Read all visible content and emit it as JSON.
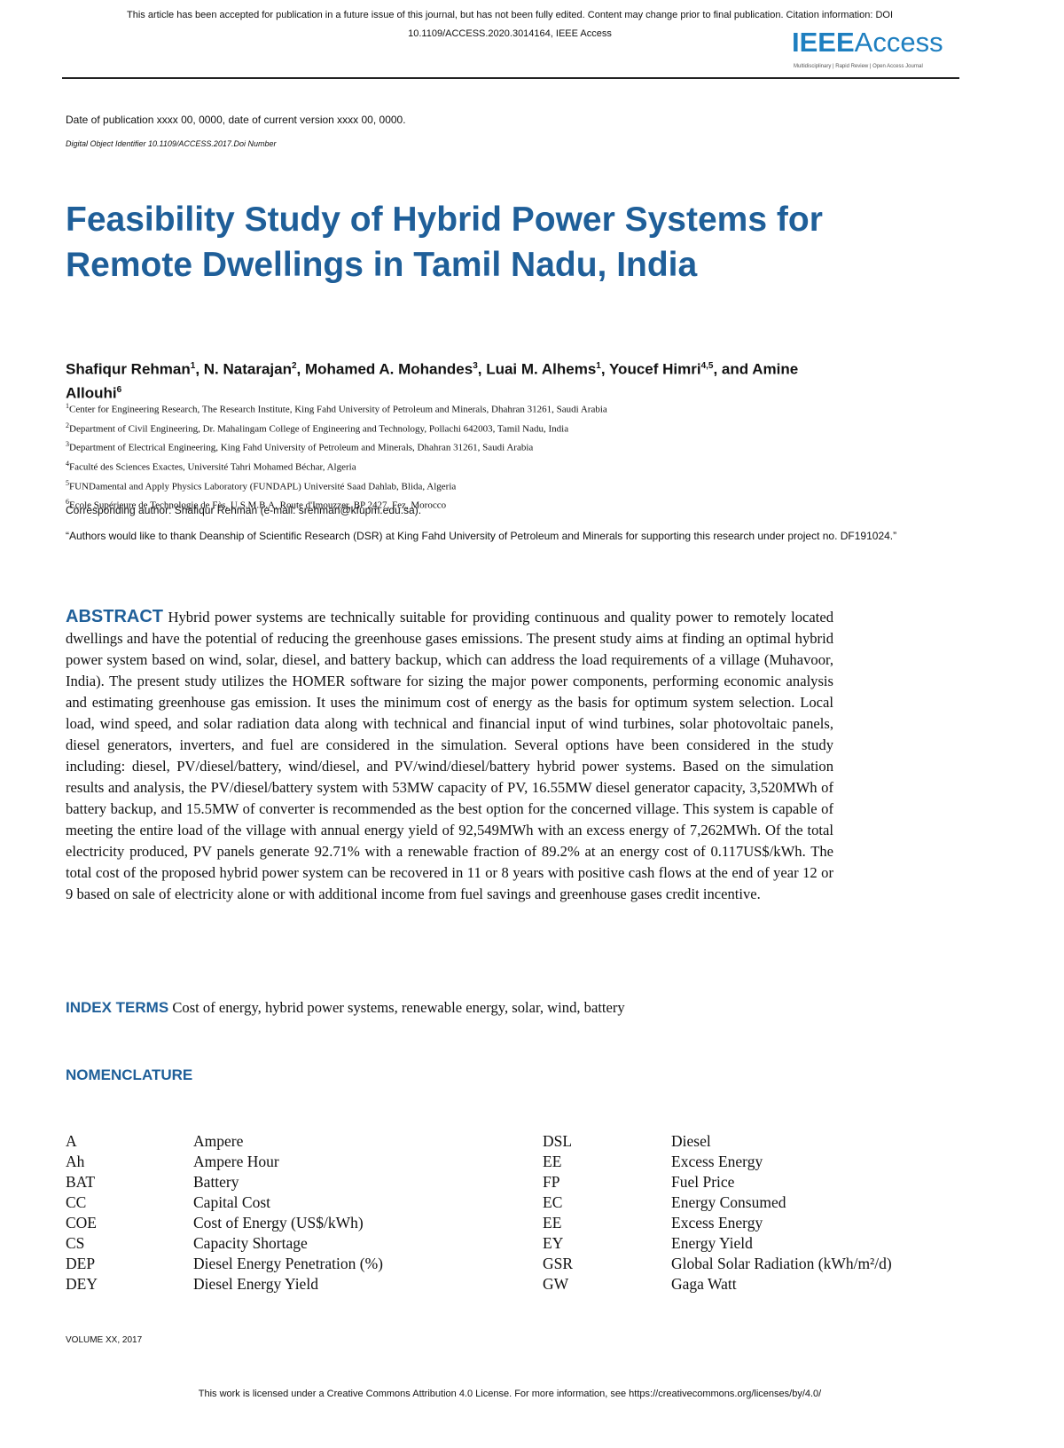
{
  "header": {
    "notice": [
      "This article has been accepted for publication in a future issue of this journal, but has not been fully edited. Content may change prior to final publication. Citation information: DOI",
      "10.1109/ACCESS.2020.3014164, IEEE Access"
    ],
    "logo_bold": "IEEE",
    "logo_light": "Access",
    "tagline": "Multidisciplinary | Rapid Review | Open Access Journal"
  },
  "pub_date": "Date of publication xxxx 00, 0000, date of current version xxxx 00, 0000.",
  "doi": "Digital Object Identifier 10.1109/ACCESS.2017.Doi Number",
  "title": "Feasibility Study of Hybrid Power Systems for Remote Dwellings in Tamil Nadu, India",
  "authors": [
    {
      "text": "Shafiqur Rehman",
      "sup": "1"
    },
    {
      "text": ", N. Natarajan",
      "sup": "2"
    },
    {
      "text": ", Mohamed A. Mohandes",
      "sup": "3"
    },
    {
      "text": ", Luai M. Alhems",
      "sup": "1"
    },
    {
      "text": ", Youcef Himri",
      "sup": "4,5"
    },
    {
      "text": ", and Amine Allouhi",
      "sup": "6"
    }
  ],
  "affiliations": [
    {
      "sup": "1",
      "text": "Center for Engineering Research, The Research Institute, King Fahd University of Petroleum and Minerals, Dhahran 31261, Saudi Arabia"
    },
    {
      "sup": "2",
      "text": "Department of Civil Engineering, Dr. Mahalingam College of Engineering and Technology, Pollachi 642003, Tamil Nadu, India"
    },
    {
      "sup": "3",
      "text": "Department of Electrical Engineering, King Fahd University of Petroleum and Minerals, Dhahran 31261, Saudi Arabia"
    },
    {
      "sup": "4",
      "text": "Faculté des Sciences Exactes, Université Tahri Mohamed Béchar, Algeria"
    },
    {
      "sup": "5",
      "text": "FUNDamental and Apply Physics Laboratory (FUNDAPL) Université Saad Dahlab, Blida, Algeria"
    },
    {
      "sup": "6",
      "text": "Ecole Supérieure de Technologie de Fès, U.S.M.B.A, Route d'Imouzzer, BP 2427, Fez, Morocco"
    }
  ],
  "corresponding": "Corresponding author: Shafiqur Rehman (e-mail: srehman@kfupm.edu.sa).",
  "acknowledgment": "“Authors would like to thank Deanship of Scientific Research (DSR) at King Fahd University of Petroleum and Minerals for supporting this research under project no. DF191024.”",
  "abstract": {
    "label": "ABSTRACT",
    "text": "Hybrid power systems are technically suitable for providing continuous and quality power to remotely located dwellings and have the potential of reducing the greenhouse gases emissions. The present study aims at finding an optimal hybrid power system based on wind, solar, diesel, and battery backup, which can address the load requirements of a village (Muhavoor, India). The present study utilizes the HOMER software for sizing the major power components, performing economic analysis and estimating greenhouse gas emission. It uses the minimum cost of energy as the basis for optimum system selection. Local load, wind speed, and solar radiation data along with technical and financial input of wind turbines, solar photovoltaic panels, diesel generators, inverters, and fuel are considered in the simulation. Several options have been considered in the study including: diesel, PV/diesel/battery, wind/diesel, and PV/wind/diesel/battery hybrid power systems. Based on the simulation results and analysis, the PV/diesel/battery system with 53MW capacity of PV, 16.55MW diesel generator capacity, 3,520MWh of battery backup, and 15.5MW of converter is recommended as the best option for the concerned village. This system is capable of meeting the entire load of the village with annual energy yield of 92,549MWh with an excess energy of 7,262MWh. Of the total electricity produced, PV panels generate 92.71% with a renewable fraction of 89.2% at an energy cost of 0.117US$/kWh. The total cost of the proposed hybrid power system can be recovered in 11 or 8 years with positive cash flows at the end of year 12 or 9 based on sale of electricity alone or with additional income from fuel savings and greenhouse gases credit incentive."
  },
  "index_terms": {
    "label": "INDEX TERMS",
    "text": "Cost of energy, hybrid power systems, renewable energy, solar, wind, battery"
  },
  "nomenclature": {
    "heading": "NOMENCLATURE",
    "left": [
      [
        "A",
        "Ampere"
      ],
      [
        "Ah",
        "Ampere Hour"
      ],
      [
        "BAT",
        "Battery"
      ],
      [
        "CC",
        "Capital Cost"
      ],
      [
        "COE",
        "Cost of Energy (US$/kWh)"
      ],
      [
        "CS",
        "Capacity Shortage"
      ],
      [
        "DEP",
        "Diesel Energy Penetration (%)"
      ],
      [
        "DEY",
        "Diesel Energy Yield"
      ]
    ],
    "right": [
      [
        "DSL",
        "Diesel"
      ],
      [
        "EE",
        "Excess Energy"
      ],
      [
        "FP",
        "Fuel Price"
      ],
      [
        "EC",
        "Energy Consumed"
      ],
      [
        "EE",
        "Excess Energy"
      ],
      [
        "EY",
        "Energy Yield"
      ],
      [
        "GSR",
        "Global Solar Radiation (kWh/m²/d)"
      ],
      [
        "GW",
        "Gaga Watt"
      ]
    ]
  },
  "footer": {
    "volume": "VOLUME XX, 2017",
    "license": "This work is licensed under a Creative Commons Attribution 4.0 License. For more information, see https://creativecommons.org/licenses/by/4.0/"
  }
}
